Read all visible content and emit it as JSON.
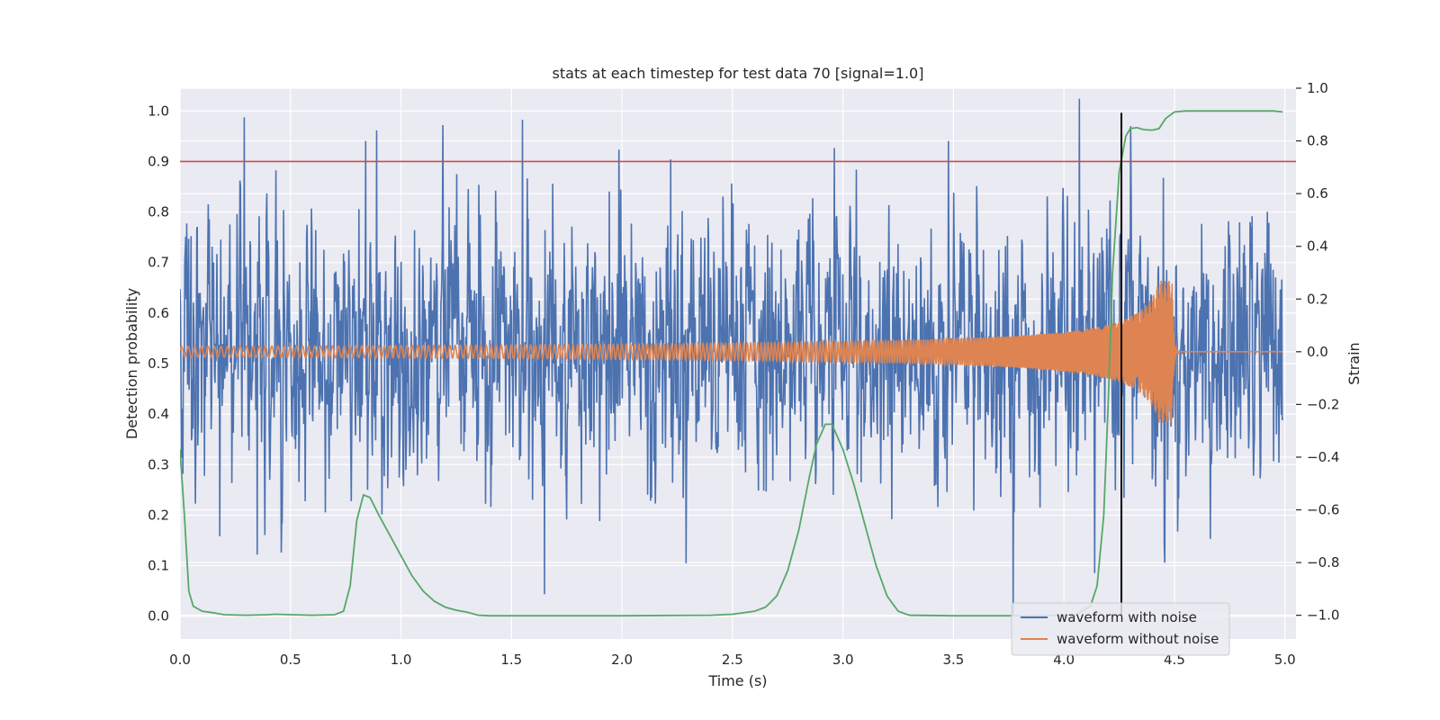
{
  "chart_data": {
    "type": "line",
    "title": "stats at each timestep for test data 70 [signal=1.0]",
    "xlabel": "Time (s)",
    "ylabel_left": "Detection probability",
    "ylabel_right": "Strain",
    "xlim": [
      0.0,
      5.05
    ],
    "ylim_left": [
      -0.045,
      1.045
    ],
    "ylim_right": [
      -1.09,
      1.0
    ],
    "x_ticks": [
      "0.0",
      "0.5",
      "1.0",
      "1.5",
      "2.0",
      "2.5",
      "3.0",
      "3.5",
      "4.0",
      "4.5",
      "5.0"
    ],
    "y_ticks_left": [
      "0.0",
      "0.1",
      "0.2",
      "0.3",
      "0.4",
      "0.5",
      "0.6",
      "0.7",
      "0.8",
      "0.9",
      "1.0"
    ],
    "y_ticks_right": [
      "−1.0",
      "−0.8",
      "−0.6",
      "−0.4",
      "−0.2",
      "0.0",
      "0.2",
      "0.4",
      "0.6",
      "0.8",
      "1.0"
    ],
    "grid": true,
    "legend_position": "lower-right",
    "threshold": {
      "y": 0.9,
      "color": "#c44e52"
    },
    "detection_time": {
      "x": 4.26,
      "y_from": -1.0,
      "y_to": 0.9,
      "color": "#000000"
    },
    "colors": {
      "noisy": "#4c72b0",
      "clean": "#dd8452",
      "probability": "#55a868",
      "background": "#eaeaf2",
      "grid": "#ffffff"
    },
    "series": [
      {
        "name": "waveform with noise",
        "axis": "right",
        "amplitude_scale": 0.26,
        "peaks": [
          [
            0.29,
            0.89
          ],
          [
            0.84,
            0.8
          ],
          [
            0.89,
            0.84
          ],
          [
            1.19,
            0.86
          ],
          [
            1.55,
            0.88
          ],
          [
            2.22,
            0.73
          ],
          [
            4.07,
            0.96
          ],
          [
            4.45,
            0.66
          ],
          [
            1.65,
            -0.92
          ],
          [
            3.77,
            -1.0
          ],
          [
            4.14,
            -0.84
          ],
          [
            0.35,
            -0.77
          ],
          [
            0.18,
            -0.7
          ]
        ]
      },
      {
        "name": "waveform without noise",
        "axis": "right",
        "amplitude_start": 0.02,
        "amplitude_peak": 0.27,
        "merger_time": 4.49,
        "ringdown_end": 4.52,
        "frequency_start": 33,
        "frequency_end": 130
      },
      {
        "name": "",
        "axis": "left",
        "x": [
          0.0,
          0.02,
          0.04,
          0.06,
          0.1,
          0.15,
          0.2,
          0.3,
          0.4,
          0.43,
          0.5,
          0.6,
          0.7,
          0.74,
          0.77,
          0.8,
          0.83,
          0.86,
          0.9,
          0.95,
          1.0,
          1.05,
          1.1,
          1.15,
          1.2,
          1.25,
          1.3,
          1.35,
          1.4,
          1.6,
          2.0,
          2.4,
          2.5,
          2.6,
          2.65,
          2.7,
          2.75,
          2.8,
          2.85,
          2.88,
          2.92,
          2.95,
          3.0,
          3.05,
          3.1,
          3.15,
          3.2,
          3.25,
          3.3,
          3.5,
          3.8,
          4.05,
          4.12,
          4.15,
          4.18,
          4.2,
          4.22,
          4.25,
          4.28,
          4.3,
          4.33,
          4.36,
          4.4,
          4.43,
          4.46,
          4.5,
          4.55,
          4.7,
          4.85,
          4.95,
          4.99
        ],
        "y": [
          0.33,
          0.2,
          0.05,
          0.02,
          0.01,
          0.007,
          0.003,
          0.002,
          0.003,
          0.004,
          0.003,
          0.002,
          0.003,
          0.01,
          0.06,
          0.19,
          0.24,
          0.235,
          0.2,
          0.16,
          0.12,
          0.08,
          0.05,
          0.03,
          0.018,
          0.012,
          0.008,
          0.002,
          0.001,
          0.001,
          0.001,
          0.002,
          0.004,
          0.01,
          0.018,
          0.04,
          0.09,
          0.17,
          0.28,
          0.34,
          0.38,
          0.38,
          0.33,
          0.26,
          0.18,
          0.1,
          0.04,
          0.01,
          0.002,
          0.001,
          0.001,
          0.002,
          0.02,
          0.06,
          0.2,
          0.42,
          0.68,
          0.88,
          0.95,
          0.965,
          0.967,
          0.963,
          0.962,
          0.965,
          0.985,
          0.998,
          1.0,
          1.0,
          1.0,
          1.0,
          0.998
        ]
      }
    ]
  }
}
